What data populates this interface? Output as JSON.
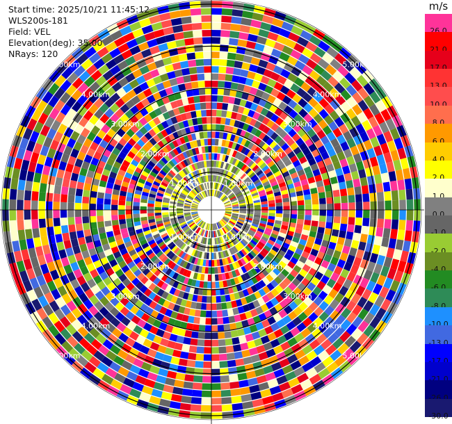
{
  "info": {
    "start_time": "Start time: 2025/10/21 11:45:12",
    "site": "WLS200s-181",
    "field": "Field: VEL",
    "elevation": "Elevation(deg): 35.00",
    "nrays": "NRays: 120"
  },
  "colorbar": {
    "unit": "m/s",
    "levels": [
      {
        "label": "26.0",
        "color": "#ff3399"
      },
      {
        "label": "21.0",
        "color": "#ff0000"
      },
      {
        "label": "17.0",
        "color": "#e6001a"
      },
      {
        "label": "13.0",
        "color": "#ff3333"
      },
      {
        "label": "10.0",
        "color": "#ff4d4d"
      },
      {
        "label": "8.0",
        "color": "#ff6e4d"
      },
      {
        "label": "6.0",
        "color": "#ff9900"
      },
      {
        "label": "4.0",
        "color": "#ffcc00"
      },
      {
        "label": "2.0",
        "color": "#ffff00"
      },
      {
        "label": "1.0",
        "color": "#ffffcc"
      },
      {
        "label": "0.0",
        "color": "#808080"
      },
      {
        "label": "-1.0",
        "color": "#666666"
      },
      {
        "label": "-2.0",
        "color": "#99cc33"
      },
      {
        "label": "-4.0",
        "color": "#6b8e23"
      },
      {
        "label": "-6.0",
        "color": "#228b22"
      },
      {
        "label": "-8.0",
        "color": "#2e8b57"
      },
      {
        "label": "-10.0",
        "color": "#1e90ff"
      },
      {
        "label": "-13.0",
        "color": "#4169e1"
      },
      {
        "label": "-17.0",
        "color": "#0000ff"
      },
      {
        "label": "-21.0",
        "color": "#0000cd"
      },
      {
        "label": "-26.0",
        "color": "#000080"
      },
      {
        "label": "-30.0",
        "color": "#191970"
      }
    ]
  },
  "range_rings": [
    {
      "label": "1.00km"
    },
    {
      "label": "2.00km"
    },
    {
      "label": "3.00km"
    },
    {
      "label": "4.00km"
    },
    {
      "label": "5.00km"
    }
  ],
  "scan": {
    "nrays": 120,
    "ngates": 27
  }
}
